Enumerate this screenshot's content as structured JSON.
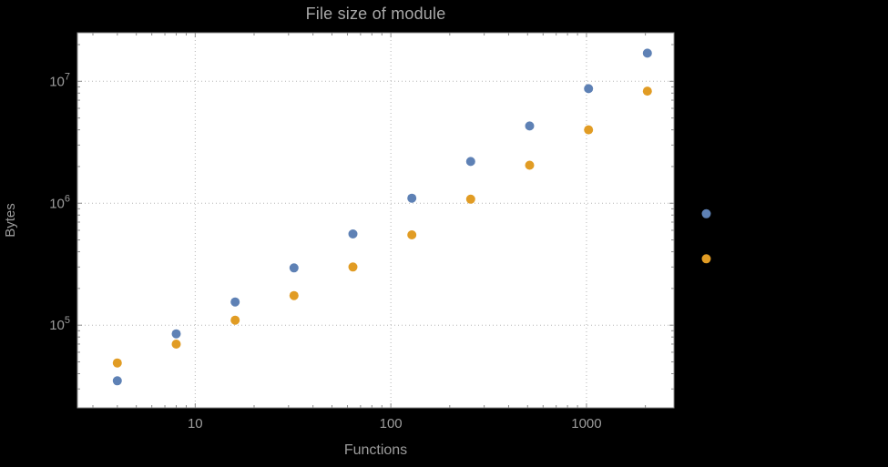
{
  "page": {
    "background": "#000000"
  },
  "chart_data": {
    "type": "scatter",
    "title": "File size of module",
    "xlabel": "Functions",
    "ylabel": "Bytes",
    "x_scale": "log",
    "y_scale": "log",
    "xlim": [
      2.5,
      2800
    ],
    "ylim": [
      21000,
      25000000
    ],
    "grid": "dotted",
    "legend": "none",
    "marker_radius": 5,
    "x_ticks": [
      {
        "value": 10,
        "label": "10"
      },
      {
        "value": 100,
        "label": "100"
      },
      {
        "value": 1000,
        "label": "1000"
      }
    ],
    "y_ticks": [
      {
        "value": 100000,
        "mantissa": "10",
        "exponent": "5"
      },
      {
        "value": 1000000,
        "mantissa": "10",
        "exponent": "6"
      },
      {
        "value": 10000000,
        "mantissa": "10",
        "exponent": "7"
      }
    ],
    "colors": {
      "page_background": "#000000",
      "plot_background": "#ffffff",
      "grid": "#b5b5b5",
      "frame": "#8c8c8c",
      "tick_label": "#9c9c9c",
      "axis_label": "#9c9c9c",
      "title": "#a8a8a8"
    },
    "series": [
      {
        "name": "blue",
        "color": "#5e81b5",
        "x": [
          4,
          8,
          16,
          32,
          64,
          128,
          256,
          512,
          1024,
          2048,
          4096
        ],
        "y": [
          35000,
          85000,
          155000,
          295000,
          560000,
          1100000,
          2200000,
          4300000,
          8700000,
          17000000,
          820000
        ]
      },
      {
        "name": "orange",
        "color": "#e19c24",
        "x": [
          4,
          8,
          16,
          32,
          64,
          128,
          256,
          512,
          1024,
          2048,
          4096
        ],
        "y": [
          49000,
          70000,
          110000,
          175000,
          300000,
          550000,
          1080000,
          2050000,
          4000000,
          8300000,
          350000
        ]
      }
    ],
    "notes": "log-log scatter; the x=4096 pair of points renders to the right of the plot frame edge"
  }
}
